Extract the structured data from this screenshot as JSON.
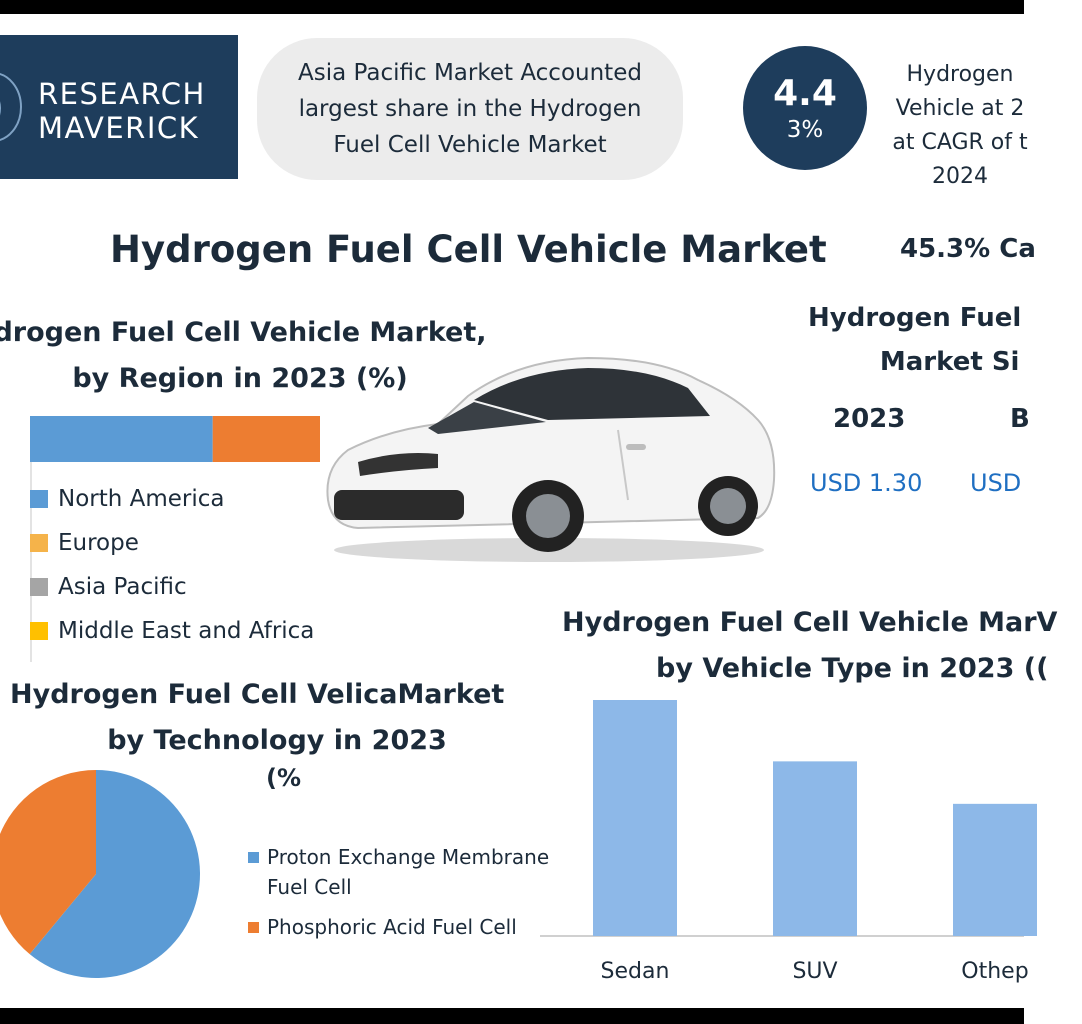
{
  "brand": {
    "line1": "RESEARCH",
    "line2": "MAVERICK"
  },
  "callout": {
    "text": "Asia Pacific Market Accounted largest share in the Hydrogen Fuel Cell Vehicle Market"
  },
  "stat": {
    "big": "4.4",
    "small": "3%",
    "note_lines": [
      "Hydrogen",
      "Vehicle at 2",
      "at CAGR of t",
      "2024"
    ]
  },
  "main_title": "Hydrogen Fuel Cell Vehicle Market",
  "cagr_label": "45.3% Ca",
  "market_size": {
    "title_lines": [
      "Hydrogen Fuel",
      "Market Si"
    ],
    "year1": "2023",
    "year2": "B",
    "value1": "USD 1.30",
    "value2": "USD"
  },
  "colors": {
    "navy": "#1e3d5c",
    "north_america": "#5b9bd5",
    "europe": "#ed7d31",
    "asia_pacific": "#a5a5a5",
    "mea": "#ffc000",
    "pem": "#5b9bd5",
    "pafc": "#ed7d31",
    "bar": "#8db8e8",
    "usd_text": "#1f6fc2"
  },
  "car_image": "white-sedan-car",
  "chart_data": [
    {
      "type": "bar",
      "orientation": "horizontal-stacked",
      "title_lines": [
        "drogen Fuel Cell Vehicle Market,",
        "by Region in 2023 (%)"
      ],
      "series": [
        {
          "name": "North America",
          "value": 63
        },
        {
          "name": "Europe",
          "value": 37
        },
        {
          "name": "Asia Pacific",
          "value": 0
        },
        {
          "name": "Middle East and Africa",
          "value": 0
        }
      ],
      "legend": [
        "North America",
        "Europe",
        "Asia Pacific",
        "Middle East and Africa"
      ],
      "legend_placement": "bottom-left"
    },
    {
      "type": "pie",
      "title_lines": [
        "Hydrogen Fuel Cell VelicaMarket",
        "by Technology in 2023"
      ],
      "subtitle": "(%",
      "slices": [
        {
          "name": "Proton Exchange Membrane Fuel Cell",
          "label_lines": [
            "Proton Exchange Membrane",
            "Fuel Cell"
          ],
          "value": 61
        },
        {
          "name": "Phosphoric Acid Fuel Cell",
          "label_lines": [
            "Phosphoric Acid Fuel Cell"
          ],
          "value": 39
        }
      ],
      "legend_placement": "right"
    },
    {
      "type": "bar",
      "title_lines": [
        "Hydrogen Fuel Cell Vehicle MarV",
        "by Vehicle Type in 2023 (("
      ],
      "categories": [
        "Sedan",
        "SUV",
        "Othep"
      ],
      "values": [
        100,
        74,
        56
      ],
      "ylim": [
        0,
        100
      ],
      "grid": false
    }
  ]
}
